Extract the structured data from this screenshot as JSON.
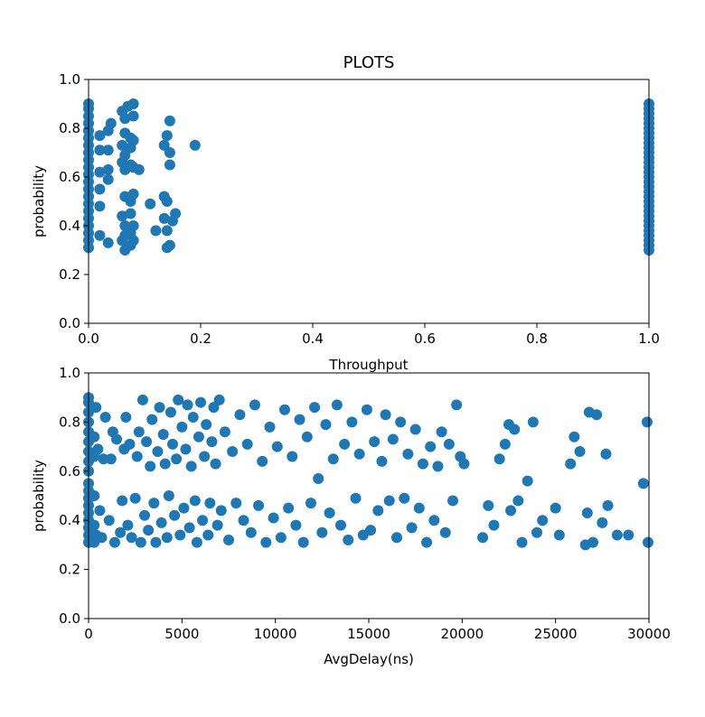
{
  "chart_data": [
    {
      "type": "scatter",
      "title": "PLOTS",
      "xlabel": "Throughput",
      "ylabel": "probability",
      "xlim": [
        0,
        1.0
      ],
      "ylim": [
        0,
        1.0
      ],
      "xticks": [
        "0.0",
        "0.2",
        "0.4",
        "0.6",
        "0.8",
        "1.0"
      ],
      "yticks": [
        "0.0",
        "0.2",
        "0.4",
        "0.6",
        "0.8",
        "1.0"
      ],
      "grid": false,
      "legend": "none",
      "marker_color": "#1f77b4",
      "points": [
        [
          0.0,
          0.31
        ],
        [
          0.0,
          0.34
        ],
        [
          0.0,
          0.37
        ],
        [
          0.0,
          0.4
        ],
        [
          0.0,
          0.43
        ],
        [
          0.0,
          0.46
        ],
        [
          0.0,
          0.49
        ],
        [
          0.0,
          0.52
        ],
        [
          0.0,
          0.55
        ],
        [
          0.0,
          0.58
        ],
        [
          0.0,
          0.61
        ],
        [
          0.0,
          0.64
        ],
        [
          0.0,
          0.67
        ],
        [
          0.0,
          0.7
        ],
        [
          0.0,
          0.73
        ],
        [
          0.0,
          0.76
        ],
        [
          0.0,
          0.79
        ],
        [
          0.0,
          0.82
        ],
        [
          0.0,
          0.85
        ],
        [
          0.0,
          0.88
        ],
        [
          0.0,
          0.9
        ],
        [
          0.02,
          0.36
        ],
        [
          0.02,
          0.48
        ],
        [
          0.02,
          0.55
        ],
        [
          0.02,
          0.62
        ],
        [
          0.02,
          0.71
        ],
        [
          0.02,
          0.77
        ],
        [
          0.035,
          0.33
        ],
        [
          0.035,
          0.59
        ],
        [
          0.035,
          0.63
        ],
        [
          0.035,
          0.71
        ],
        [
          0.035,
          0.79
        ],
        [
          0.04,
          0.82
        ],
        [
          0.06,
          0.34
        ],
        [
          0.06,
          0.44
        ],
        [
          0.06,
          0.66
        ],
        [
          0.06,
          0.73
        ],
        [
          0.06,
          0.87
        ],
        [
          0.065,
          0.3
        ],
        [
          0.065,
          0.36
        ],
        [
          0.065,
          0.4
        ],
        [
          0.065,
          0.52
        ],
        [
          0.065,
          0.63
        ],
        [
          0.065,
          0.69
        ],
        [
          0.065,
          0.78
        ],
        [
          0.065,
          0.84
        ],
        [
          0.07,
          0.89
        ],
        [
          0.075,
          0.32
        ],
        [
          0.075,
          0.37
        ],
        [
          0.075,
          0.45
        ],
        [
          0.075,
          0.5
        ],
        [
          0.075,
          0.65
        ],
        [
          0.075,
          0.72
        ],
        [
          0.075,
          0.76
        ],
        [
          0.08,
          0.34
        ],
        [
          0.08,
          0.4
        ],
        [
          0.08,
          0.53
        ],
        [
          0.08,
          0.64
        ],
        [
          0.08,
          0.75
        ],
        [
          0.08,
          0.85
        ],
        [
          0.08,
          0.9
        ],
        [
          0.09,
          0.63
        ],
        [
          0.11,
          0.49
        ],
        [
          0.12,
          0.38
        ],
        [
          0.135,
          0.43
        ],
        [
          0.135,
          0.52
        ],
        [
          0.135,
          0.73
        ],
        [
          0.14,
          0.31
        ],
        [
          0.14,
          0.38
        ],
        [
          0.14,
          0.5
        ],
        [
          0.14,
          0.77
        ],
        [
          0.145,
          0.32
        ],
        [
          0.145,
          0.65
        ],
        [
          0.145,
          0.7
        ],
        [
          0.145,
          0.83
        ],
        [
          0.15,
          0.42
        ],
        [
          0.155,
          0.45
        ],
        [
          0.19,
          0.73
        ],
        [
          1.0,
          0.3
        ],
        [
          1.0,
          0.32
        ],
        [
          1.0,
          0.34
        ],
        [
          1.0,
          0.36
        ],
        [
          1.0,
          0.38
        ],
        [
          1.0,
          0.4
        ],
        [
          1.0,
          0.42
        ],
        [
          1.0,
          0.44
        ],
        [
          1.0,
          0.46
        ],
        [
          1.0,
          0.48
        ],
        [
          1.0,
          0.5
        ],
        [
          1.0,
          0.52
        ],
        [
          1.0,
          0.54
        ],
        [
          1.0,
          0.56
        ],
        [
          1.0,
          0.58
        ],
        [
          1.0,
          0.6
        ],
        [
          1.0,
          0.62
        ],
        [
          1.0,
          0.64
        ],
        [
          1.0,
          0.66
        ],
        [
          1.0,
          0.68
        ],
        [
          1.0,
          0.7
        ],
        [
          1.0,
          0.72
        ],
        [
          1.0,
          0.74
        ],
        [
          1.0,
          0.76
        ],
        [
          1.0,
          0.78
        ],
        [
          1.0,
          0.8
        ],
        [
          1.0,
          0.82
        ],
        [
          1.0,
          0.84
        ],
        [
          1.0,
          0.86
        ],
        [
          1.0,
          0.88
        ],
        [
          1.0,
          0.9
        ]
      ]
    },
    {
      "type": "scatter",
      "title": "",
      "xlabel": "AvgDelay(ns)",
      "ylabel": "probability",
      "xlim": [
        0,
        30000
      ],
      "ylim": [
        0,
        1.0
      ],
      "xticks": [
        "0",
        "5000",
        "10000",
        "15000",
        "20000",
        "25000",
        "30000"
      ],
      "yticks": [
        "0.0",
        "0.2",
        "0.4",
        "0.6",
        "0.8",
        "1.0"
      ],
      "grid": false,
      "legend": "none",
      "marker_color": "#1f77b4",
      "points": [
        [
          0,
          0.31
        ],
        [
          0,
          0.34
        ],
        [
          0,
          0.37
        ],
        [
          0,
          0.4
        ],
        [
          0,
          0.43
        ],
        [
          0,
          0.46
        ],
        [
          0,
          0.49
        ],
        [
          0,
          0.52
        ],
        [
          0,
          0.55
        ],
        [
          0,
          0.6
        ],
        [
          0,
          0.64
        ],
        [
          0,
          0.68
        ],
        [
          0,
          0.72
        ],
        [
          0,
          0.76
        ],
        [
          0,
          0.8
        ],
        [
          0,
          0.84
        ],
        [
          0,
          0.88
        ],
        [
          0,
          0.9
        ],
        [
          300,
          0.31
        ],
        [
          300,
          0.38
        ],
        [
          300,
          0.5
        ],
        [
          300,
          0.66
        ],
        [
          300,
          0.74
        ],
        [
          400,
          0.34
        ],
        [
          400,
          0.86
        ],
        [
          500,
          0.69
        ],
        [
          600,
          0.44
        ],
        [
          700,
          0.33
        ],
        [
          800,
          0.65
        ],
        [
          900,
          0.82
        ],
        [
          1100,
          0.4
        ],
        [
          1200,
          0.65
        ],
        [
          1300,
          0.76
        ],
        [
          1400,
          0.31
        ],
        [
          1500,
          0.73
        ],
        [
          1700,
          0.35
        ],
        [
          1800,
          0.48
        ],
        [
          1900,
          0.69
        ],
        [
          2000,
          0.82
        ],
        [
          2100,
          0.38
        ],
        [
          2200,
          0.71
        ],
        [
          2300,
          0.33
        ],
        [
          2500,
          0.49
        ],
        [
          2600,
          0.66
        ],
        [
          2700,
          0.76
        ],
        [
          2800,
          0.31
        ],
        [
          2900,
          0.89
        ],
        [
          3000,
          0.42
        ],
        [
          3100,
          0.72
        ],
        [
          3200,
          0.36
        ],
        [
          3300,
          0.62
        ],
        [
          3400,
          0.81
        ],
        [
          3500,
          0.47
        ],
        [
          3600,
          0.31
        ],
        [
          3700,
          0.68
        ],
        [
          3800,
          0.86
        ],
        [
          3900,
          0.39
        ],
        [
          4000,
          0.75
        ],
        [
          4100,
          0.63
        ],
        [
          4200,
          0.33
        ],
        [
          4300,
          0.5
        ],
        [
          4400,
          0.84
        ],
        [
          4500,
          0.71
        ],
        [
          4600,
          0.42
        ],
        [
          4700,
          0.65
        ],
        [
          4800,
          0.89
        ],
        [
          4900,
          0.34
        ],
        [
          5000,
          0.78
        ],
        [
          5100,
          0.45
        ],
        [
          5200,
          0.69
        ],
        [
          5300,
          0.87
        ],
        [
          5400,
          0.37
        ],
        [
          5500,
          0.62
        ],
        [
          5600,
          0.82
        ],
        [
          5700,
          0.48
        ],
        [
          5800,
          0.31
        ],
        [
          5900,
          0.74
        ],
        [
          6000,
          0.88
        ],
        [
          6100,
          0.4
        ],
        [
          6200,
          0.66
        ],
        [
          6300,
          0.79
        ],
        [
          6400,
          0.34
        ],
        [
          6500,
          0.47
        ],
        [
          6600,
          0.72
        ],
        [
          6700,
          0.86
        ],
        [
          6800,
          0.63
        ],
        [
          6900,
          0.38
        ],
        [
          7000,
          0.89
        ],
        [
          7100,
          0.44
        ],
        [
          7300,
          0.76
        ],
        [
          7500,
          0.32
        ],
        [
          7700,
          0.68
        ],
        [
          7900,
          0.47
        ],
        [
          8100,
          0.83
        ],
        [
          8300,
          0.4
        ],
        [
          8500,
          0.71
        ],
        [
          8700,
          0.35
        ],
        [
          8900,
          0.87
        ],
        [
          9100,
          0.46
        ],
        [
          9300,
          0.64
        ],
        [
          9500,
          0.31
        ],
        [
          9700,
          0.78
        ],
        [
          9900,
          0.41
        ],
        [
          10100,
          0.7
        ],
        [
          10300,
          0.33
        ],
        [
          10500,
          0.85
        ],
        [
          10700,
          0.45
        ],
        [
          10900,
          0.66
        ],
        [
          11100,
          0.38
        ],
        [
          11300,
          0.81
        ],
        [
          11500,
          0.31
        ],
        [
          11700,
          0.74
        ],
        [
          11900,
          0.47
        ],
        [
          12100,
          0.86
        ],
        [
          12300,
          0.57
        ],
        [
          12500,
          0.35
        ],
        [
          12700,
          0.79
        ],
        [
          12900,
          0.43
        ],
        [
          13100,
          0.65
        ],
        [
          13300,
          0.87
        ],
        [
          13500,
          0.38
        ],
        [
          13700,
          0.71
        ],
        [
          13900,
          0.32
        ],
        [
          14100,
          0.8
        ],
        [
          14300,
          0.49
        ],
        [
          14500,
          0.67
        ],
        [
          14700,
          0.34
        ],
        [
          14900,
          0.85
        ],
        [
          15100,
          0.36
        ],
        [
          15300,
          0.72
        ],
        [
          15500,
          0.44
        ],
        [
          15700,
          0.64
        ],
        [
          15900,
          0.83
        ],
        [
          16100,
          0.48
        ],
        [
          16300,
          0.73
        ],
        [
          16500,
          0.33
        ],
        [
          16700,
          0.8
        ],
        [
          16900,
          0.49
        ],
        [
          17100,
          0.67
        ],
        [
          17300,
          0.37
        ],
        [
          17500,
          0.77
        ],
        [
          17700,
          0.45
        ],
        [
          17900,
          0.63
        ],
        [
          18100,
          0.31
        ],
        [
          18300,
          0.7
        ],
        [
          18500,
          0.4
        ],
        [
          18700,
          0.62
        ],
        [
          18900,
          0.76
        ],
        [
          19100,
          0.35
        ],
        [
          19300,
          0.71
        ],
        [
          19500,
          0.48
        ],
        [
          19700,
          0.87
        ],
        [
          19900,
          0.66
        ],
        [
          20100,
          0.63
        ],
        [
          21100,
          0.33
        ],
        [
          21400,
          0.46
        ],
        [
          21700,
          0.38
        ],
        [
          22000,
          0.65
        ],
        [
          22300,
          0.71
        ],
        [
          22500,
          0.79
        ],
        [
          22600,
          0.44
        ],
        [
          22800,
          0.77
        ],
        [
          23000,
          0.48
        ],
        [
          23200,
          0.31
        ],
        [
          23500,
          0.56
        ],
        [
          23800,
          0.8
        ],
        [
          24000,
          0.35
        ],
        [
          24300,
          0.4
        ],
        [
          25000,
          0.45
        ],
        [
          25200,
          0.34
        ],
        [
          25800,
          0.63
        ],
        [
          26000,
          0.74
        ],
        [
          26300,
          0.68
        ],
        [
          26600,
          0.3
        ],
        [
          26700,
          0.43
        ],
        [
          26800,
          0.84
        ],
        [
          27000,
          0.31
        ],
        [
          27200,
          0.83
        ],
        [
          27500,
          0.39
        ],
        [
          27700,
          0.67
        ],
        [
          27800,
          0.46
        ],
        [
          28300,
          0.34
        ],
        [
          28900,
          0.34
        ],
        [
          29700,
          0.55
        ],
        [
          29900,
          0.8
        ],
        [
          29950,
          0.31
        ]
      ]
    }
  ]
}
